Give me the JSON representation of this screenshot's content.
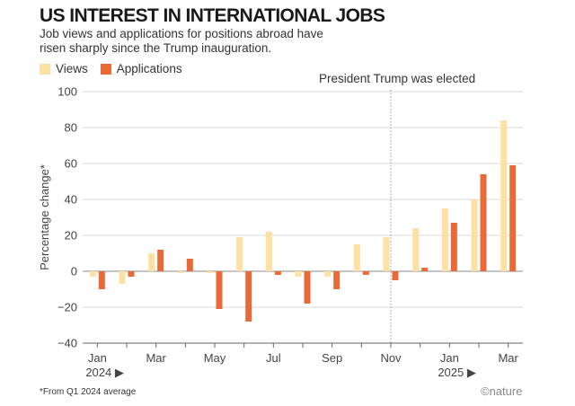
{
  "header": {
    "title": "US INTEREST IN INTERNATIONAL JOBS",
    "subtitle": "Job views and applications for positions abroad have risen sharply since the Trump inauguration."
  },
  "footnote": "*From Q1 2024 average",
  "brand": "©nature",
  "colors": {
    "views": "#FCE0A4",
    "applications": "#EA6A37",
    "axis": "#666666",
    "grid": "#d9d9d9"
  },
  "chart_data": {
    "type": "bar",
    "ylabel": "Percentage change*",
    "ylim": [
      -40,
      100
    ],
    "yticks": [
      -40,
      -20,
      0,
      20,
      40,
      60,
      80,
      100
    ],
    "grid": true,
    "legend_position": "top-left",
    "categories": [
      "Jan 2024",
      "Feb 2024",
      "Mar 2024",
      "Apr 2024",
      "May 2024",
      "Jun 2024",
      "Jul 2024",
      "Aug 2024",
      "Sep 2024",
      "Oct 2024",
      "Nov 2024",
      "Dec 2024",
      "Jan 2025",
      "Feb 2025",
      "Mar 2025"
    ],
    "x_tick_labels": [
      {
        "index": 0,
        "label": "Jan"
      },
      {
        "index": 2,
        "label": "Mar"
      },
      {
        "index": 4,
        "label": "May"
      },
      {
        "index": 6,
        "label": "Jul"
      },
      {
        "index": 8,
        "label": "Sep"
      },
      {
        "index": 10,
        "label": "Nov"
      },
      {
        "index": 12,
        "label": "Jan"
      },
      {
        "index": 14,
        "label": "Mar"
      }
    ],
    "year_labels": [
      {
        "index": 0,
        "label": "2024 ▶"
      },
      {
        "index": 12,
        "label": "2025 ▶"
      }
    ],
    "series": [
      {
        "name": "Views",
        "values": [
          -3,
          -7,
          10,
          -1,
          -1,
          19,
          22,
          -3,
          -3,
          15,
          19,
          24,
          35,
          40,
          84
        ]
      },
      {
        "name": "Applications",
        "values": [
          -10,
          -3,
          12,
          7,
          -21,
          -28,
          -2,
          -18,
          -10,
          -2,
          -5,
          2,
          27,
          54,
          59
        ]
      }
    ],
    "annotations": [
      {
        "text": "President Trump was elected",
        "index": 10
      }
    ]
  }
}
